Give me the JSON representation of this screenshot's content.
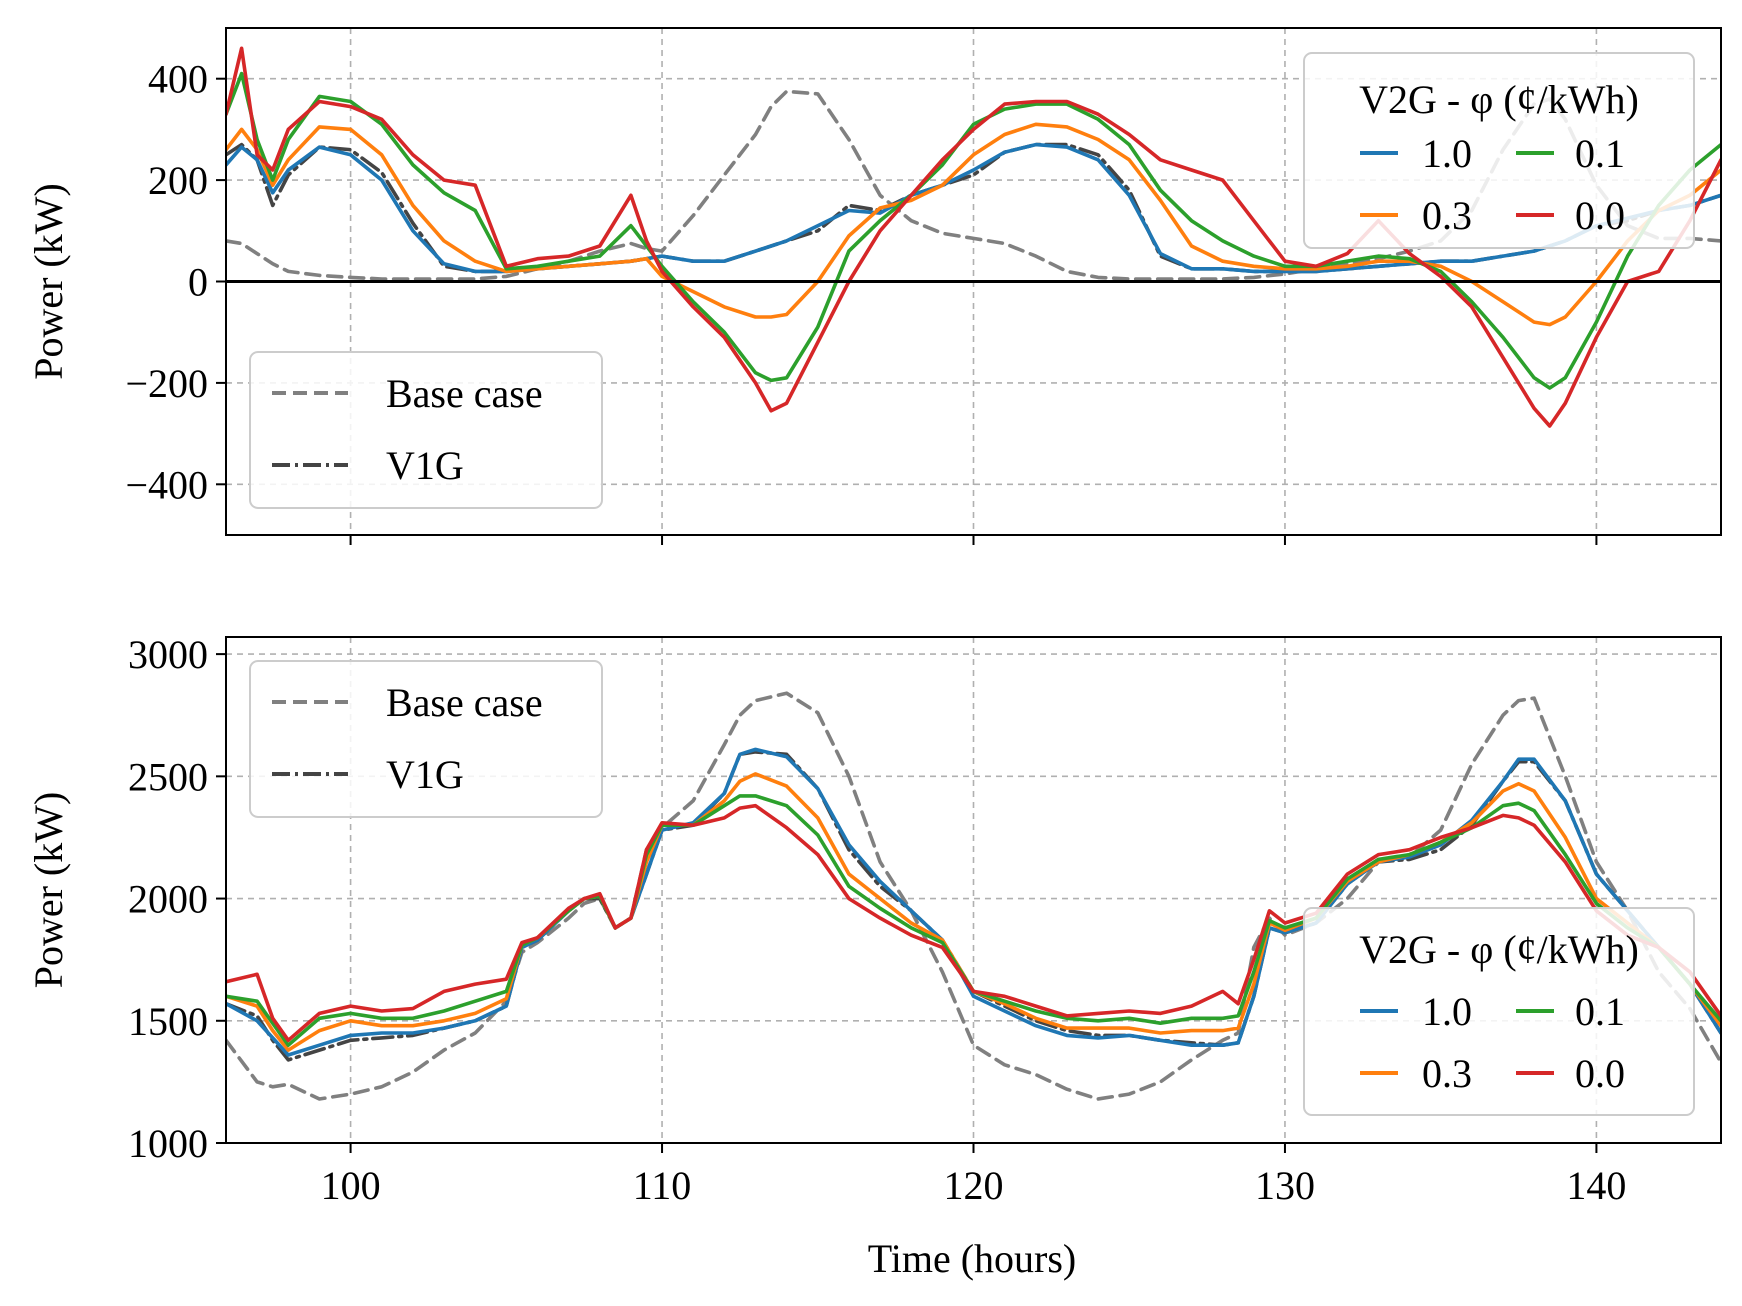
{
  "figure": {
    "xlabel": "Time (hours)",
    "ylabel": "Power (kW)"
  },
  "colors": {
    "v2g_1_0": "#1f77b4",
    "v2g_0_3": "#ff7f0e",
    "v2g_0_1": "#2ca02c",
    "v2g_0_0": "#d62728",
    "base_case": "#808080",
    "v1g": "#444444"
  },
  "legend_labels": {
    "base_case": "Base case",
    "v1g": "V1G",
    "v2g_title": "V2G - φ (¢/kWh)",
    "phi_1_0": "1.0",
    "phi_0_3": "0.3",
    "phi_0_1": "0.1",
    "phi_0_0": "0.0"
  },
  "chart_data": [
    {
      "type": "line",
      "panel": "top",
      "ylabel": "Power (kW)",
      "xlim": [
        96,
        144
      ],
      "ylim": [
        -500,
        500
      ],
      "xticks": [
        100,
        110,
        120,
        130,
        140
      ],
      "yticks": [
        -400,
        -200,
        0,
        200,
        400
      ],
      "ytick_labels": [
        "−400",
        "−200",
        "0",
        "200",
        "400"
      ],
      "grid": true,
      "zero_line": true,
      "legend_style_position": "lower-left",
      "legend_v2g_position": "upper-right",
      "x": [
        96,
        96.5,
        97,
        97.5,
        98,
        99,
        100,
        101,
        102,
        103,
        104,
        105,
        106,
        107,
        108,
        109,
        109.5,
        110,
        111,
        112,
        113,
        113.5,
        114,
        115,
        116,
        117,
        118,
        119,
        120,
        121,
        122,
        123,
        124,
        125,
        126,
        127,
        128,
        129,
        130,
        131,
        132,
        133,
        134,
        135,
        136,
        137,
        138,
        138.5,
        139,
        140,
        141,
        142,
        143,
        144
      ],
      "series": [
        {
          "name": "Base case",
          "style": "dashed",
          "values": [
            80,
            75,
            55,
            35,
            20,
            12,
            8,
            5,
            5,
            5,
            5,
            10,
            25,
            40,
            60,
            75,
            65,
            60,
            130,
            210,
            290,
            345,
            375,
            370,
            280,
            170,
            120,
            95,
            85,
            75,
            50,
            20,
            8,
            5,
            5,
            5,
            5,
            8,
            15,
            25,
            35,
            45,
            60,
            80,
            140,
            260,
            350,
            360,
            320,
            190,
            110,
            85,
            85,
            80
          ]
        },
        {
          "name": "V1G",
          "style": "dashdot",
          "values": [
            250,
            270,
            240,
            150,
            210,
            265,
            260,
            215,
            115,
            30,
            20,
            20,
            25,
            30,
            35,
            40,
            45,
            50,
            40,
            40,
            60,
            70,
            80,
            100,
            150,
            140,
            170,
            190,
            210,
            255,
            270,
            270,
            250,
            180,
            50,
            25,
            25,
            20,
            20,
            20,
            25,
            30,
            35,
            40,
            40,
            50,
            60,
            70,
            80,
            110,
            120,
            140,
            150,
            170
          ]
        },
        {
          "name": "1.0",
          "values": [
            230,
            265,
            240,
            175,
            220,
            265,
            250,
            200,
            100,
            35,
            20,
            20,
            25,
            30,
            35,
            40,
            45,
            50,
            40,
            40,
            60,
            70,
            80,
            110,
            140,
            135,
            170,
            190,
            220,
            255,
            270,
            265,
            240,
            170,
            55,
            25,
            25,
            20,
            20,
            20,
            25,
            30,
            35,
            40,
            40,
            50,
            60,
            70,
            80,
            110,
            125,
            140,
            150,
            170
          ]
        },
        {
          "name": "0.3",
          "values": [
            260,
            300,
            260,
            190,
            240,
            305,
            300,
            250,
            150,
            80,
            40,
            20,
            25,
            30,
            35,
            40,
            45,
            10,
            -20,
            -50,
            -70,
            -70,
            -65,
            0,
            90,
            145,
            160,
            190,
            250,
            290,
            310,
            305,
            280,
            240,
            160,
            70,
            40,
            30,
            25,
            25,
            30,
            40,
            40,
            30,
            0,
            -40,
            -80,
            -85,
            -70,
            0,
            80,
            140,
            170,
            220
          ]
        },
        {
          "name": "0.1",
          "values": [
            330,
            410,
            280,
            200,
            280,
            365,
            355,
            310,
            230,
            175,
            140,
            25,
            30,
            40,
            50,
            110,
            70,
            30,
            -40,
            -100,
            -180,
            -195,
            -190,
            -90,
            60,
            120,
            170,
            230,
            310,
            340,
            350,
            350,
            320,
            270,
            180,
            120,
            80,
            50,
            30,
            30,
            40,
            50,
            45,
            20,
            -40,
            -110,
            -190,
            -210,
            -190,
            -80,
            50,
            150,
            220,
            270
          ]
        },
        {
          "name": "0.0",
          "values": [
            330,
            460,
            250,
            220,
            300,
            355,
            345,
            320,
            250,
            200,
            190,
            30,
            45,
            50,
            70,
            170,
            80,
            20,
            -50,
            -110,
            -200,
            -255,
            -240,
            -120,
            0,
            100,
            170,
            240,
            300,
            350,
            355,
            355,
            330,
            290,
            240,
            220,
            200,
            120,
            40,
            30,
            55,
            120,
            55,
            10,
            -50,
            -150,
            -250,
            -285,
            -240,
            -110,
            0,
            20,
            120,
            240
          ]
        }
      ]
    },
    {
      "type": "line",
      "panel": "bottom",
      "xlabel": "Time (hours)",
      "ylabel": "Power (kW)",
      "xlim": [
        96,
        144
      ],
      "ylim": [
        1000,
        3070
      ],
      "xticks": [
        100,
        110,
        120,
        130,
        140
      ],
      "yticks": [
        1000,
        1500,
        2000,
        2500,
        3000
      ],
      "ytick_labels": [
        "1000",
        "1500",
        "2000",
        "2500",
        "3000"
      ],
      "grid": true,
      "legend_style_position": "upper-left",
      "legend_v2g_position": "lower-right",
      "x": [
        96,
        97,
        97.5,
        98,
        99,
        100,
        101,
        102,
        103,
        104,
        105,
        105.5,
        106,
        107,
        107.5,
        108,
        108.5,
        109,
        109.5,
        110,
        111,
        112,
        112.5,
        113,
        114,
        115,
        116,
        117,
        118,
        119,
        120,
        121,
        122,
        123,
        124,
        125,
        126,
        127,
        128,
        128.5,
        129,
        129.5,
        130,
        131,
        132,
        133,
        134,
        135,
        136,
        137,
        137.5,
        138,
        139,
        140,
        141,
        142,
        143,
        144
      ],
      "series": [
        {
          "name": "Base case",
          "style": "dashed",
          "values": [
            1420,
            1250,
            1230,
            1240,
            1180,
            1200,
            1230,
            1290,
            1380,
            1450,
            1580,
            1780,
            1820,
            1920,
            1980,
            2000,
            1880,
            1920,
            2200,
            2290,
            2400,
            2630,
            2750,
            2810,
            2840,
            2760,
            2500,
            2150,
            1950,
            1700,
            1400,
            1320,
            1280,
            1220,
            1180,
            1200,
            1250,
            1340,
            1420,
            1450,
            1800,
            1920,
            1850,
            1900,
            2000,
            2150,
            2170,
            2280,
            2550,
            2750,
            2810,
            2820,
            2500,
            2150,
            1950,
            1700,
            1550,
            1330
          ]
        },
        {
          "name": "V1G",
          "style": "dashdot",
          "values": [
            1570,
            1520,
            1420,
            1340,
            1380,
            1420,
            1430,
            1440,
            1470,
            1500,
            1560,
            1800,
            1830,
            1950,
            2000,
            2000,
            1880,
            1920,
            2100,
            2280,
            2300,
            2430,
            2590,
            2600,
            2590,
            2450,
            2200,
            2050,
            1950,
            1830,
            1620,
            1560,
            1500,
            1460,
            1440,
            1440,
            1420,
            1410,
            1400,
            1410,
            1600,
            1880,
            1860,
            1900,
            2060,
            2150,
            2160,
            2200,
            2300,
            2480,
            2560,
            2560,
            2400,
            2100,
            1950,
            1800,
            1650,
            1450
          ]
        },
        {
          "name": "1.0",
          "values": [
            1570,
            1500,
            1430,
            1360,
            1400,
            1440,
            1450,
            1450,
            1470,
            1500,
            1560,
            1800,
            1830,
            1950,
            2000,
            2010,
            1880,
            1920,
            2100,
            2280,
            2310,
            2430,
            2590,
            2610,
            2580,
            2450,
            2220,
            2070,
            1950,
            1830,
            1600,
            1540,
            1480,
            1440,
            1430,
            1440,
            1420,
            1400,
            1400,
            1410,
            1600,
            1880,
            1860,
            1900,
            2060,
            2150,
            2170,
            2220,
            2320,
            2480,
            2570,
            2570,
            2400,
            2100,
            1950,
            1800,
            1650,
            1450
          ]
        },
        {
          "name": "0.3",
          "values": [
            1600,
            1560,
            1460,
            1380,
            1460,
            1500,
            1480,
            1480,
            1500,
            1530,
            1590,
            1810,
            1840,
            1950,
            2000,
            2010,
            1880,
            1920,
            2150,
            2300,
            2300,
            2400,
            2480,
            2510,
            2460,
            2330,
            2100,
            2000,
            1900,
            1830,
            1620,
            1570,
            1510,
            1470,
            1470,
            1470,
            1450,
            1460,
            1460,
            1470,
            1650,
            1900,
            1870,
            1920,
            2070,
            2150,
            2180,
            2230,
            2310,
            2440,
            2470,
            2440,
            2250,
            2000,
            1900,
            1800,
            1650,
            1480
          ]
        },
        {
          "name": "0.1",
          "values": [
            1600,
            1580,
            1490,
            1400,
            1510,
            1530,
            1510,
            1510,
            1540,
            1580,
            1620,
            1810,
            1840,
            1950,
            2000,
            2010,
            1880,
            1920,
            2180,
            2300,
            2300,
            2380,
            2420,
            2420,
            2380,
            2260,
            2050,
            1960,
            1880,
            1820,
            1620,
            1580,
            1540,
            1510,
            1500,
            1510,
            1490,
            1510,
            1510,
            1520,
            1700,
            1910,
            1880,
            1920,
            2080,
            2160,
            2180,
            2230,
            2290,
            2380,
            2390,
            2360,
            2180,
            1980,
            1880,
            1800,
            1650,
            1500
          ]
        },
        {
          "name": "0.0",
          "values": [
            1660,
            1690,
            1510,
            1420,
            1530,
            1560,
            1540,
            1550,
            1620,
            1650,
            1670,
            1820,
            1840,
            1960,
            2000,
            2020,
            1880,
            1920,
            2200,
            2310,
            2300,
            2330,
            2370,
            2380,
            2290,
            2180,
            2000,
            1920,
            1850,
            1800,
            1620,
            1600,
            1560,
            1520,
            1530,
            1540,
            1530,
            1560,
            1620,
            1570,
            1750,
            1950,
            1900,
            1940,
            2100,
            2180,
            2200,
            2250,
            2290,
            2340,
            2330,
            2300,
            2150,
            1950,
            1850,
            1800,
            1700,
            1520
          ]
        }
      ]
    }
  ]
}
